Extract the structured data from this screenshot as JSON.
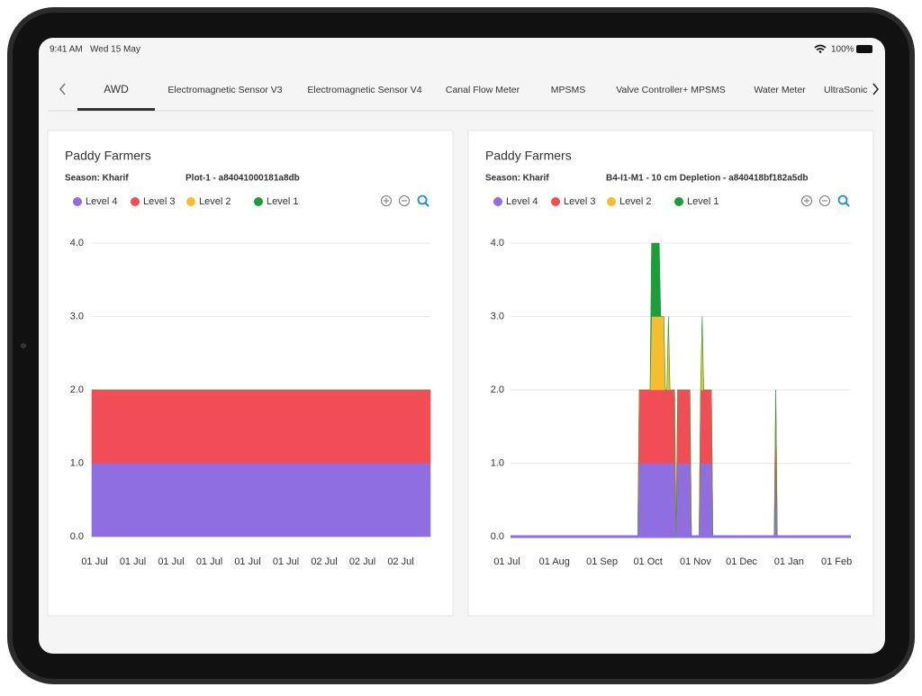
{
  "status": {
    "time": "9:41 AM",
    "date": "Wed 15 May",
    "battery": "100%"
  },
  "tabs": [
    "AWD",
    "Electromagnetic Sensor V3",
    "Electromagnetic Sensor V4",
    "Canal Flow Meter",
    "MPSMS",
    "Valve Controller+ MPSMS",
    "Water Meter",
    "UltraSonic"
  ],
  "chart_data": [
    {
      "type": "area",
      "title": "Paddy Farmers",
      "season": "Season: Kharif",
      "subtitle": "Plot-1 - a84041000181a8db",
      "categories": [
        "01 Jul",
        "01 Jul",
        "01 Jul",
        "01 Jul",
        "01 Jul",
        "01 Jul",
        "02 Jul",
        "02 Jul",
        "02 Jul"
      ],
      "series": [
        {
          "name": "Level 4",
          "color": "#8e6ee0",
          "values": [
            1,
            1,
            1,
            1,
            1,
            1,
            1,
            1,
            1
          ]
        },
        {
          "name": "Level 3",
          "color": "#f24d57",
          "values": [
            1,
            1,
            1,
            1,
            1,
            1,
            1,
            1,
            1
          ]
        },
        {
          "name": "Level 2",
          "color": "#f5bd2f",
          "values": [
            0,
            0,
            0,
            0,
            0,
            0,
            0,
            0,
            0
          ]
        },
        {
          "name": "Level 1",
          "color": "#1b9e3a",
          "values": [
            0,
            0,
            0,
            0,
            0,
            0,
            0,
            0,
            0
          ]
        }
      ],
      "ylim": [
        0,
        4
      ],
      "yticks": [
        {
          "value": 0,
          "label": "0.0"
        },
        {
          "value": 1,
          "label": "1.0"
        },
        {
          "value": 2,
          "label": "2.0"
        },
        {
          "value": 3,
          "label": "3.0"
        },
        {
          "value": 4,
          "label": "4.0"
        }
      ],
      "grid": true
    },
    {
      "type": "area",
      "title": "Paddy Farmers",
      "season": "Season: Kharif",
      "subtitle": "B4-I1-M1 - 10 cm Depletion - a840418bf182a5db",
      "x": [
        "01 Jul",
        "22 Sep",
        "23 Sep",
        "30 Sep",
        "01 Oct",
        "06 Oct",
        "07 Oct",
        "09 Oct",
        "10 Oct",
        "11 Oct",
        "12 Oct",
        "13 Oct",
        "16 Oct",
        "17 Oct",
        "18 Oct",
        "26 Oct",
        "27 Oct",
        "01 Nov",
        "02 Nov",
        "03 Nov",
        "04 Nov",
        "09 Nov",
        "10 Nov",
        "20 Dec",
        "21 Dec",
        "22 Dec",
        "08 Feb"
      ],
      "series": [
        {
          "name": "Level 4",
          "color": "#8e6ee0",
          "values": [
            0,
            0,
            1,
            1,
            1,
            1,
            1,
            1,
            1,
            1,
            1,
            1,
            1,
            0,
            1,
            1,
            0,
            0,
            1,
            1,
            1,
            1,
            0,
            0,
            1,
            0,
            0
          ]
        },
        {
          "name": "Level 3",
          "color": "#f24d57",
          "values": [
            0,
            0,
            1,
            1,
            1,
            1,
            1,
            1,
            1,
            1,
            1,
            1,
            1,
            0,
            1,
            1,
            0,
            0,
            1,
            1,
            1,
            1,
            0,
            0,
            1,
            0,
            0
          ]
        },
        {
          "name": "Level 2",
          "color": "#f5bd2f",
          "values": [
            0,
            0,
            0,
            0,
            1,
            1,
            1,
            1,
            0,
            0,
            1,
            0,
            0,
            0,
            0,
            0,
            0,
            0,
            0,
            1,
            0,
            0,
            0,
            0,
            0,
            0,
            0
          ]
        },
        {
          "name": "Level 1",
          "color": "#1b9e3a",
          "values": [
            0,
            0,
            0,
            0,
            1,
            1,
            0,
            0,
            0,
            0,
            0,
            0,
            0,
            0,
            0,
            0,
            0,
            0,
            0,
            0,
            0,
            0,
            0,
            0,
            0,
            0,
            0
          ]
        }
      ],
      "xlim": [
        "01 Jul",
        "08 Feb"
      ],
      "xticks": [
        "01 Jul",
        "01 Aug",
        "01 Sep",
        "01 Oct",
        "01 Nov",
        "01 Dec",
        "01 Jan",
        "01 Feb"
      ],
      "ylim": [
        0,
        4
      ],
      "yticks": [
        {
          "value": 0,
          "label": "0.0"
        },
        {
          "value": 1,
          "label": "1.0"
        },
        {
          "value": 2,
          "label": "2.0"
        },
        {
          "value": 3,
          "label": "3.0"
        },
        {
          "value": 4,
          "label": "4.0"
        }
      ],
      "grid": true
    }
  ]
}
